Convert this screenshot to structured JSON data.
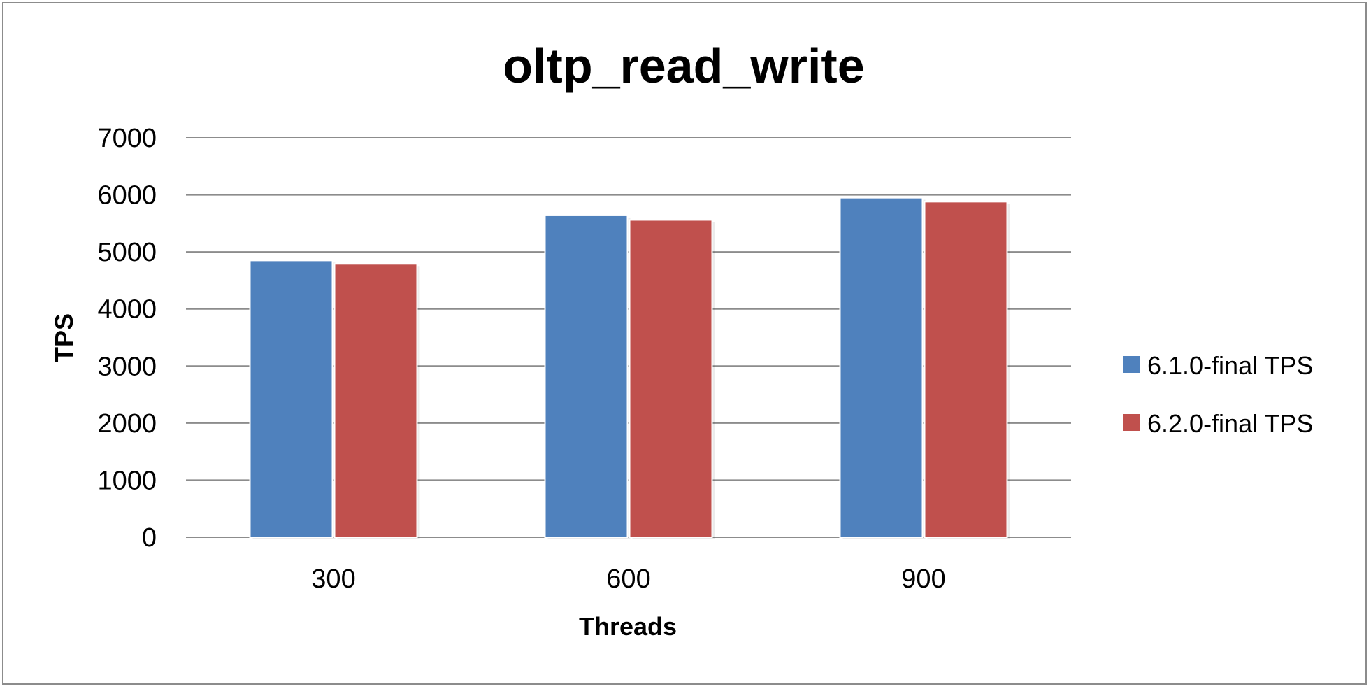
{
  "chart_data": {
    "type": "bar",
    "title": "oltp_read_write",
    "xlabel": "Threads",
    "ylabel": "TPS",
    "categories": [
      "300",
      "600",
      "900"
    ],
    "series": [
      {
        "name": "6.1.0-final TPS",
        "color": "#4f81bd",
        "values": [
          4850,
          5640,
          5950
        ]
      },
      {
        "name": "6.2.0-final TPS",
        "color": "#c0504d",
        "values": [
          4790,
          5560,
          5880
        ]
      }
    ],
    "ylim": [
      0,
      7000
    ],
    "yticks": [
      "0",
      "1000",
      "2000",
      "3000",
      "4000",
      "5000",
      "6000",
      "7000"
    ],
    "grid": true,
    "legend_position": "right"
  }
}
